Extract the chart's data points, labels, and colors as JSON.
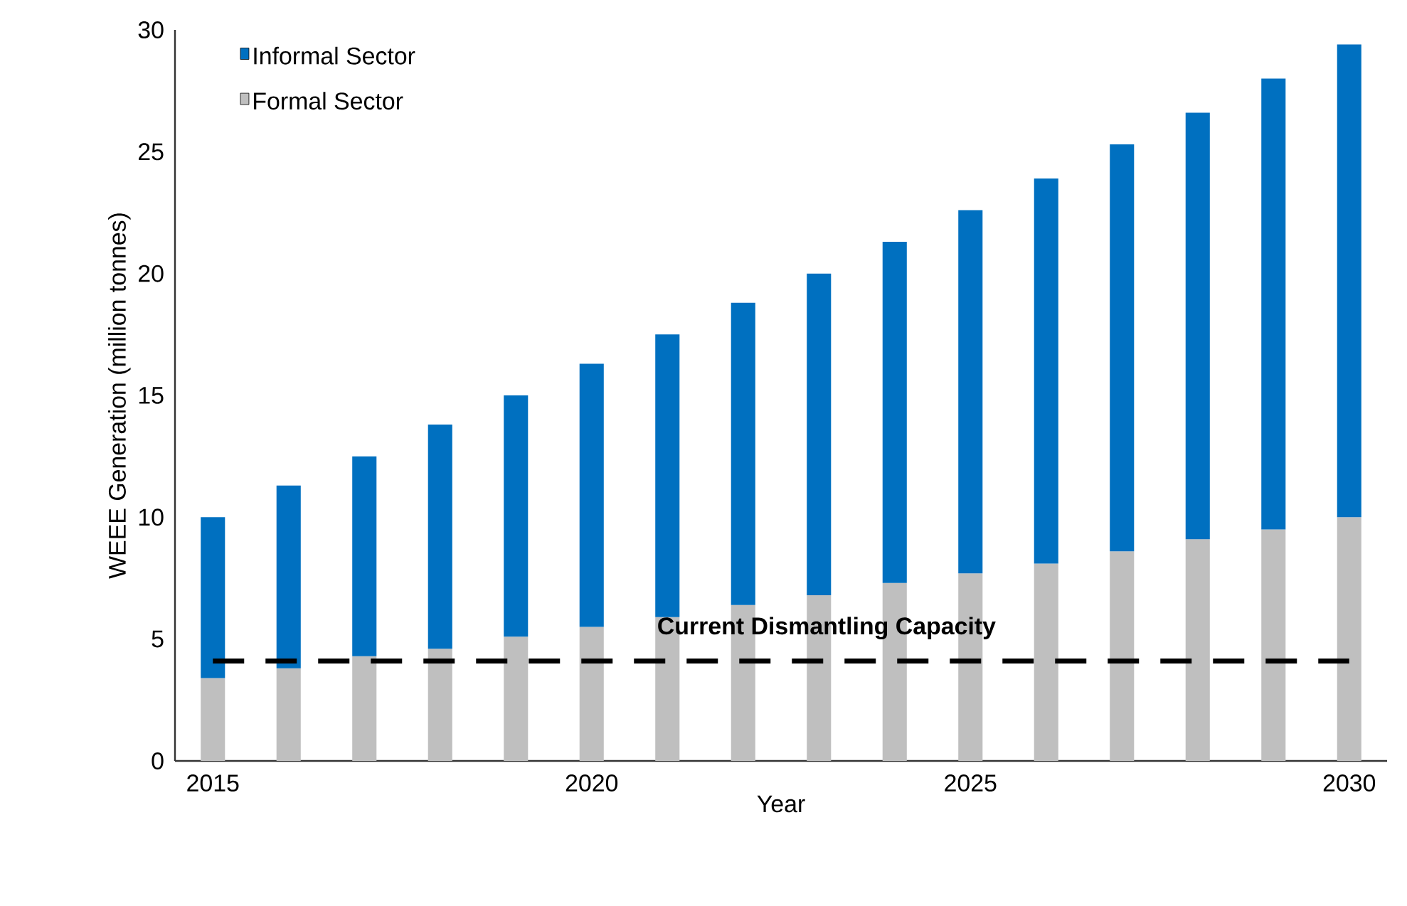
{
  "chart_data": {
    "type": "bar",
    "stacked": true,
    "xlabel": "Year",
    "ylabel": "WEEE Generation  (million tonnes)",
    "x": [
      2015,
      2016,
      2017,
      2018,
      2019,
      2020,
      2021,
      2022,
      2023,
      2024,
      2025,
      2026,
      2027,
      2028,
      2029,
      2030
    ],
    "series": [
      {
        "name": "Formal Sector",
        "color": "#bfbfbf",
        "values": [
          3.4,
          3.8,
          4.3,
          4.6,
          5.1,
          5.5,
          5.9,
          6.4,
          6.8,
          7.3,
          7.7,
          8.1,
          8.6,
          9.1,
          9.5,
          10.0
        ]
      },
      {
        "name": "Informal Sector",
        "color": "#0070c0",
        "values": [
          6.6,
          7.5,
          8.2,
          9.2,
          9.9,
          10.8,
          11.6,
          12.4,
          13.2,
          14.0,
          14.9,
          15.8,
          16.7,
          17.5,
          18.5,
          19.4
        ]
      }
    ],
    "xlim": [
      2014.5,
      2030.5
    ],
    "xticks": [
      2015,
      2020,
      2025,
      2030
    ],
    "ylim": [
      0,
      30
    ],
    "yticks": [
      0,
      5,
      10,
      15,
      20,
      25,
      30
    ],
    "ref_lines": [
      {
        "axis": "y",
        "value": 4.1,
        "label": "Current Dismantling Capacity",
        "color": "#000000",
        "line_style": "dashed"
      }
    ],
    "legend": "top left",
    "grid": false
  }
}
